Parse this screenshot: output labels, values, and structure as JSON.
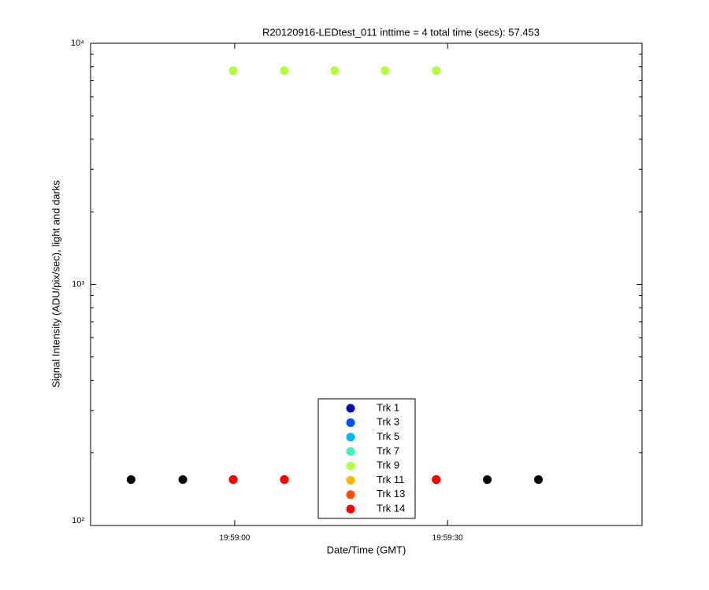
{
  "chart_data": {
    "type": "scatter",
    "title": "R20120916-LEDtest_011 inttime = 4 total time (secs): 57.453",
    "x_label": "Date/Time (GMT)",
    "y_label": "Signal Intensity (ADU/pix/sec), light and darks",
    "log_y": true,
    "xlim": [
      "19:58:39.7",
      "19:59:57.4"
    ],
    "xticks": [
      "19:59:00",
      "19:59:30"
    ],
    "ylim": [
      100,
      10000
    ],
    "yticks": [
      {
        "value": 100,
        "label": "10²"
      },
      {
        "value": 1000,
        "label": "10³"
      },
      {
        "value": 10000,
        "label": "10⁴"
      }
    ],
    "legend": "bottom",
    "darks": {
      "color": "#000000",
      "x": [
        "19:58:45.4",
        "19:58:52.7",
        "19:59:35.6",
        "19:59:42.8"
      ],
      "values": [
        155,
        155,
        155,
        155
      ]
    },
    "series": [
      {
        "name": "Trk 1",
        "color": "#0010b0",
        "x": [
          "19:58:59.8",
          "19:59:07.0",
          "19:59:28.4"
        ],
        "values": [
          155,
          155,
          155
        ]
      },
      {
        "name": "Trk 3",
        "color": "#0050ff",
        "x": [
          "19:58:59.8",
          "19:59:07.0",
          "19:59:28.4"
        ],
        "values": [
          155,
          155,
          155
        ]
      },
      {
        "name": "Trk 5",
        "color": "#00b4ff",
        "x": [
          "19:58:59.8",
          "19:59:07.0",
          "19:59:28.4"
        ],
        "values": [
          155,
          155,
          155
        ]
      },
      {
        "name": "Trk 7",
        "color": "#40f0c0",
        "x": [
          "19:58:59.8",
          "19:59:07.0",
          "19:59:28.4"
        ],
        "values": [
          155,
          155,
          155
        ]
      },
      {
        "name": "Trk 9",
        "color": "#b4ff3c",
        "x": [
          "19:58:59.8",
          "19:59:07.0",
          "19:59:14.1",
          "19:59:21.2",
          "19:59:28.4"
        ],
        "values": [
          7700,
          7700,
          7700,
          7700,
          7700
        ]
      },
      {
        "name": "Trk 11",
        "color": "#ffb400",
        "x": [
          "19:58:59.8",
          "19:59:07.0",
          "19:59:28.4"
        ],
        "values": [
          155,
          155,
          155
        ]
      },
      {
        "name": "Trk 13",
        "color": "#ff5000",
        "x": [
          "19:58:59.8",
          "19:59:07.0",
          "19:59:28.4"
        ],
        "values": [
          155,
          155,
          155
        ]
      },
      {
        "name": "Trk 14",
        "color": "#ff0000",
        "x": [
          "19:58:59.8",
          "19:59:07.0",
          "19:59:28.4"
        ],
        "values": [
          155,
          155,
          155
        ]
      }
    ]
  }
}
